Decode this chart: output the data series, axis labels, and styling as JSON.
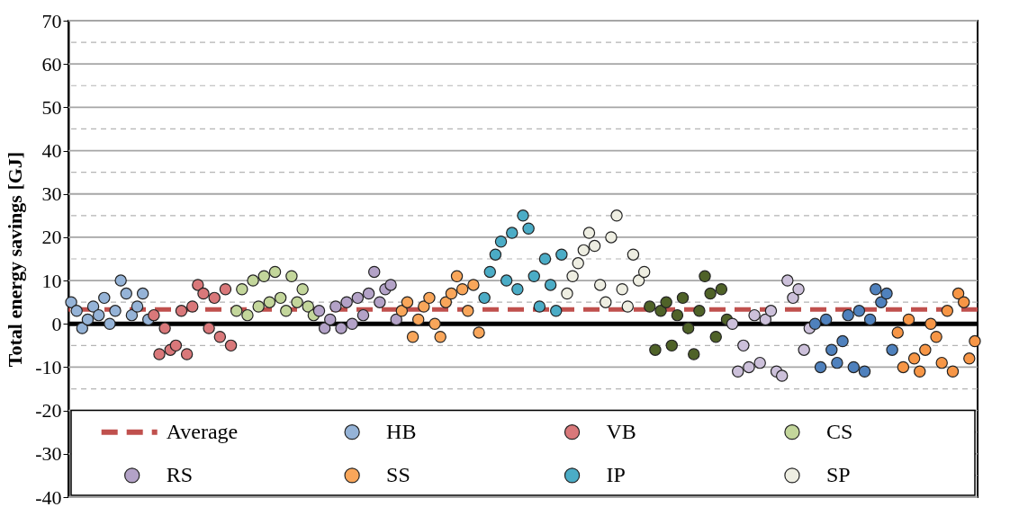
{
  "chart_data": {
    "type": "scatter",
    "ylabel": "Total energy savings [GJ]",
    "tick_labels": "y",
    "categories": [
      null,
      null,
      null,
      null,
      null,
      null,
      null,
      null,
      null,
      null,
      null,
      null,
      null,
      null,
      null,
      null,
      null,
      null,
      null,
      null,
      null,
      null,
      null,
      null,
      null,
      null,
      null,
      null,
      null,
      null,
      null,
      null,
      null,
      null,
      null,
      null,
      null,
      null,
      null,
      null,
      null,
      null,
      null,
      null,
      null,
      null,
      null,
      null,
      null,
      null,
      null,
      null,
      null,
      null,
      null,
      null,
      null,
      null,
      null,
      null,
      null,
      null,
      null,
      null,
      null,
      null,
      null,
      null,
      null,
      null,
      null,
      null,
      null,
      null,
      null,
      null,
      null,
      null,
      null,
      null,
      null,
      null,
      null,
      null,
      null,
      null,
      null,
      null,
      null,
      null,
      null,
      null,
      null,
      null,
      null,
      null,
      null,
      null,
      null,
      null,
      null,
      null,
      null,
      null,
      null,
      null,
      null,
      null,
      null,
      null,
      null,
      null,
      null,
      null,
      null,
      null,
      null,
      null,
      null,
      null,
      null,
      null,
      null,
      null,
      null,
      null,
      null,
      null,
      null,
      null,
      null,
      null,
      null,
      null,
      null,
      null,
      null,
      null,
      null,
      null,
      null,
      null,
      null,
      null,
      null,
      null,
      null,
      null,
      null,
      null,
      null,
      null,
      null,
      null,
      null,
      null,
      null,
      null,
      null,
      null,
      null,
      null,
      null,
      null,
      null
    ],
    "ylim": [
      -40,
      70
    ],
    "yticks": [
      -40,
      {
        "value": -35,
        "label": null
      },
      -30,
      {
        "value": -25,
        "label": null
      },
      -20,
      {
        "value": -15,
        "label": null
      },
      -10,
      {
        "value": -5,
        "label": null
      },
      0,
      {
        "value": 5,
        "label": null
      },
      10,
      {
        "value": 15,
        "label": null
      },
      20,
      {
        "value": 25,
        "label": null
      },
      30,
      {
        "value": 35,
        "label": null
      },
      40,
      {
        "value": 45,
        "label": null
      },
      50,
      {
        "value": 55,
        "label": null
      },
      60,
      {
        "value": 65,
        "label": null
      },
      70
    ],
    "grid": "y",
    "legend": "bottom",
    "marker": "circle",
    "ref_lines": [
      {
        "axis": "y",
        "value": 0,
        "color": "#000000",
        "line_style": "solid"
      },
      {
        "axis": "y",
        "value": 3.3,
        "label": "Average",
        "color": "#c0504d",
        "line_style": "dashed"
      }
    ],
    "series": [
      {
        "name": "HB",
        "color": "#95b3d7",
        "values": [
          5,
          3,
          -1,
          1,
          4,
          2,
          6,
          0,
          3,
          10,
          7,
          2,
          4,
          7,
          1,
          null,
          null,
          null,
          null,
          null,
          null,
          null,
          null,
          null,
          null,
          null,
          null,
          null,
          null,
          null,
          null,
          null,
          null,
          null,
          null,
          null,
          null,
          null,
          null,
          null,
          null,
          null,
          null,
          null,
          null,
          null,
          null,
          null,
          null,
          null,
          null,
          null,
          null,
          null,
          null,
          null,
          null,
          null,
          null,
          null,
          null,
          null,
          null,
          null,
          null,
          null,
          null,
          null,
          null,
          null,
          null,
          null,
          null,
          null,
          null,
          null,
          null,
          null,
          null,
          null,
          null,
          null,
          null,
          null,
          null,
          null,
          null,
          null,
          null,
          null,
          null,
          null,
          null,
          null,
          null,
          null,
          null,
          null,
          null,
          null,
          null,
          null,
          null,
          null,
          null,
          null,
          null,
          null,
          null,
          null,
          null,
          null,
          null,
          null,
          null,
          null,
          null,
          null,
          null,
          null,
          null,
          null,
          null,
          null,
          null,
          null,
          null,
          null,
          null,
          null,
          null,
          null,
          null,
          null,
          null,
          null,
          null,
          null,
          null,
          null,
          null,
          null,
          null,
          null,
          null,
          null,
          null,
          null,
          null,
          null,
          null,
          null,
          null,
          null,
          null,
          null,
          null,
          null,
          null,
          null,
          null,
          null,
          null,
          null,
          null
        ]
      },
      {
        "name": "VB",
        "color": "#d9787a",
        "values": [
          null,
          null,
          null,
          null,
          null,
          null,
          null,
          null,
          null,
          null,
          null,
          null,
          null,
          null,
          null,
          2,
          -7,
          -1,
          -6,
          -5,
          3,
          -7,
          4,
          9,
          7,
          -1,
          6,
          -3,
          8,
          -5,
          null,
          null,
          null,
          null,
          null,
          null,
          null,
          null,
          null,
          null,
          null,
          null,
          null,
          null,
          null,
          null,
          null,
          null,
          null,
          null,
          null,
          null,
          null,
          null,
          null,
          null,
          null,
          null,
          null,
          null,
          null,
          null,
          null,
          null,
          null,
          null,
          null,
          null,
          null,
          null,
          null,
          null,
          null,
          null,
          null,
          null,
          null,
          null,
          null,
          null,
          null,
          null,
          null,
          null,
          null,
          null,
          null,
          null,
          null,
          null,
          null,
          null,
          null,
          null,
          null,
          null,
          null,
          null,
          null,
          null,
          null,
          null,
          null,
          null,
          null,
          null,
          null,
          null,
          null,
          null,
          null,
          null,
          null,
          null,
          null,
          null,
          null,
          null,
          null,
          null,
          null,
          null,
          null,
          null,
          null,
          null,
          null,
          null,
          null,
          null,
          null,
          null,
          null,
          null,
          null,
          null,
          null,
          null,
          null,
          null,
          null,
          null,
          null,
          null,
          null,
          null,
          null,
          null,
          null,
          null,
          null,
          null,
          null,
          null,
          null,
          null,
          null,
          null,
          null,
          null,
          null,
          null,
          null,
          null,
          null
        ]
      },
      {
        "name": "CS",
        "color": "#c3d69b",
        "values": [
          null,
          null,
          null,
          null,
          null,
          null,
          null,
          null,
          null,
          null,
          null,
          null,
          null,
          null,
          null,
          null,
          null,
          null,
          null,
          null,
          null,
          null,
          null,
          null,
          null,
          null,
          null,
          null,
          null,
          null,
          3,
          8,
          2,
          10,
          4,
          11,
          5,
          12,
          6,
          3,
          11,
          5,
          8,
          4,
          2,
          null,
          null,
          null,
          null,
          null,
          null,
          null,
          null,
          null,
          null,
          null,
          null,
          null,
          null,
          null,
          null,
          null,
          null,
          null,
          null,
          null,
          null,
          null,
          null,
          null,
          null,
          null,
          null,
          null,
          null,
          null,
          null,
          null,
          null,
          null,
          null,
          null,
          null,
          null,
          null,
          null,
          null,
          null,
          null,
          null,
          null,
          null,
          null,
          null,
          null,
          null,
          null,
          null,
          null,
          null,
          null,
          null,
          null,
          null,
          null,
          null,
          null,
          null,
          null,
          null,
          null,
          null,
          null,
          null,
          null,
          null,
          null,
          null,
          null,
          null,
          null,
          null,
          null,
          null,
          null,
          null,
          null,
          null,
          null,
          null,
          null,
          null,
          null,
          null,
          null,
          null,
          null,
          null,
          null,
          null,
          null,
          null,
          null,
          null,
          null,
          null,
          null,
          null,
          null,
          null,
          null,
          null,
          null,
          null,
          null,
          null,
          null,
          null,
          null,
          null,
          null,
          null,
          null,
          null,
          null
        ]
      },
      {
        "name": "RS",
        "color": "#b3a2c7",
        "values": [
          null,
          null,
          null,
          null,
          null,
          null,
          null,
          null,
          null,
          null,
          null,
          null,
          null,
          null,
          null,
          null,
          null,
          null,
          null,
          null,
          null,
          null,
          null,
          null,
          null,
          null,
          null,
          null,
          null,
          null,
          null,
          null,
          null,
          null,
          null,
          null,
          null,
          null,
          null,
          null,
          null,
          null,
          null,
          null,
          null,
          3,
          -1,
          1,
          4,
          -1,
          5,
          0,
          6,
          2,
          7,
          12,
          5,
          8,
          9,
          1,
          null,
          null,
          null,
          null,
          null,
          null,
          null,
          null,
          null,
          null,
          null,
          null,
          null,
          null,
          null,
          null,
          null,
          null,
          null,
          null,
          null,
          null,
          null,
          null,
          null,
          null,
          null,
          null,
          null,
          null,
          null,
          null,
          null,
          null,
          null,
          null,
          null,
          null,
          null,
          null,
          null,
          null,
          null,
          null,
          null,
          null,
          null,
          null,
          null,
          null,
          null,
          null,
          null,
          null,
          null,
          null,
          null,
          null,
          null,
          null,
          null,
          null,
          null,
          null,
          null,
          null,
          null,
          null,
          null,
          null,
          null,
          null,
          null,
          null,
          null,
          null,
          null,
          null,
          null,
          null,
          null,
          null,
          null,
          null,
          null,
          null,
          null,
          null,
          null,
          null,
          null,
          null,
          null,
          null,
          null,
          null,
          null,
          null,
          null,
          null,
          null,
          null,
          null,
          null,
          null
        ]
      },
      {
        "name": "SS",
        "color": "#f9a65a",
        "values": [
          null,
          null,
          null,
          null,
          null,
          null,
          null,
          null,
          null,
          null,
          null,
          null,
          null,
          null,
          null,
          null,
          null,
          null,
          null,
          null,
          null,
          null,
          null,
          null,
          null,
          null,
          null,
          null,
          null,
          null,
          null,
          null,
          null,
          null,
          null,
          null,
          null,
          null,
          null,
          null,
          null,
          null,
          null,
          null,
          null,
          null,
          null,
          null,
          null,
          null,
          null,
          null,
          null,
          null,
          null,
          null,
          null,
          null,
          null,
          null,
          3,
          5,
          -3,
          1,
          4,
          6,
          0,
          -3,
          5,
          7,
          11,
          8,
          3,
          9,
          -2,
          null,
          null,
          null,
          null,
          null,
          null,
          null,
          null,
          null,
          null,
          null,
          null,
          null,
          null,
          null,
          null,
          null,
          null,
          null,
          null,
          null,
          null,
          null,
          null,
          null,
          null,
          null,
          null,
          null,
          null,
          null,
          null,
          null,
          null,
          null,
          null,
          null,
          null,
          null,
          null,
          null,
          null,
          null,
          null,
          null,
          null,
          null,
          null,
          null,
          null,
          null,
          null,
          null,
          null,
          null,
          null,
          null,
          null,
          null,
          null,
          null,
          null,
          null,
          null,
          null,
          null,
          null,
          null,
          null,
          null,
          null,
          null,
          null,
          null,
          null,
          null,
          null,
          null,
          null,
          null,
          null,
          null,
          null,
          null,
          null,
          null,
          null,
          null,
          null,
          null
        ]
      },
      {
        "name": "IP",
        "color": "#4bacc6",
        "values": [
          null,
          null,
          null,
          null,
          null,
          null,
          null,
          null,
          null,
          null,
          null,
          null,
          null,
          null,
          null,
          null,
          null,
          null,
          null,
          null,
          null,
          null,
          null,
          null,
          null,
          null,
          null,
          null,
          null,
          null,
          null,
          null,
          null,
          null,
          null,
          null,
          null,
          null,
          null,
          null,
          null,
          null,
          null,
          null,
          null,
          null,
          null,
          null,
          null,
          null,
          null,
          null,
          null,
          null,
          null,
          null,
          null,
          null,
          null,
          null,
          null,
          null,
          null,
          null,
          null,
          null,
          null,
          null,
          null,
          null,
          null,
          null,
          null,
          null,
          null,
          6,
          12,
          16,
          19,
          10,
          21,
          8,
          25,
          22,
          11,
          4,
          15,
          9,
          3,
          16,
          null,
          null,
          null,
          null,
          null,
          null,
          null,
          null,
          null,
          null,
          null,
          null,
          null,
          null,
          null,
          null,
          null,
          null,
          null,
          null,
          null,
          null,
          null,
          null,
          null,
          null,
          null,
          null,
          null,
          null,
          null,
          null,
          null,
          null,
          null,
          null,
          null,
          null,
          null,
          null,
          null,
          null,
          null,
          null,
          null,
          null,
          null,
          null,
          null,
          null,
          null,
          null,
          null,
          null,
          null,
          null,
          null,
          null,
          null,
          null,
          null,
          null,
          null,
          null,
          null,
          null,
          null,
          null,
          null,
          null,
          null,
          null,
          null,
          null,
          null
        ]
      },
      {
        "name": "SP",
        "color": "#eeeee2",
        "values": [
          null,
          null,
          null,
          null,
          null,
          null,
          null,
          null,
          null,
          null,
          null,
          null,
          null,
          null,
          null,
          null,
          null,
          null,
          null,
          null,
          null,
          null,
          null,
          null,
          null,
          null,
          null,
          null,
          null,
          null,
          null,
          null,
          null,
          null,
          null,
          null,
          null,
          null,
          null,
          null,
          null,
          null,
          null,
          null,
          null,
          null,
          null,
          null,
          null,
          null,
          null,
          null,
          null,
          null,
          null,
          null,
          null,
          null,
          null,
          null,
          null,
          null,
          null,
          null,
          null,
          null,
          null,
          null,
          null,
          null,
          null,
          null,
          null,
          null,
          null,
          null,
          null,
          null,
          null,
          null,
          null,
          null,
          null,
          null,
          null,
          null,
          null,
          null,
          null,
          null,
          7,
          11,
          14,
          17,
          21,
          18,
          9,
          5,
          20,
          25,
          8,
          4,
          16,
          10,
          12,
          null,
          null,
          null,
          null,
          null,
          null,
          null,
          null,
          null,
          null,
          null,
          null,
          null,
          null,
          null,
          null,
          null,
          null,
          null,
          null,
          null,
          null,
          null,
          null,
          null,
          null,
          null,
          null,
          null,
          null,
          null,
          null,
          null,
          null,
          null,
          null,
          null,
          null,
          null,
          null,
          null,
          null,
          null,
          null,
          null,
          null,
          null,
          null,
          null,
          null,
          null,
          null,
          null,
          null,
          null,
          null,
          null,
          null,
          null,
          null
        ]
      },
      {
        "color": "#4f6228",
        "values": [
          null,
          null,
          null,
          null,
          null,
          null,
          null,
          null,
          null,
          null,
          null,
          null,
          null,
          null,
          null,
          null,
          null,
          null,
          null,
          null,
          null,
          null,
          null,
          null,
          null,
          null,
          null,
          null,
          null,
          null,
          null,
          null,
          null,
          null,
          null,
          null,
          null,
          null,
          null,
          null,
          null,
          null,
          null,
          null,
          null,
          null,
          null,
          null,
          null,
          null,
          null,
          null,
          null,
          null,
          null,
          null,
          null,
          null,
          null,
          null,
          null,
          null,
          null,
          null,
          null,
          null,
          null,
          null,
          null,
          null,
          null,
          null,
          null,
          null,
          null,
          null,
          null,
          null,
          null,
          null,
          null,
          null,
          null,
          null,
          null,
          null,
          null,
          null,
          null,
          null,
          null,
          null,
          null,
          null,
          null,
          null,
          null,
          null,
          null,
          null,
          null,
          null,
          null,
          null,
          null,
          4,
          -6,
          3,
          5,
          -5,
          2,
          6,
          -1,
          -7,
          3,
          11,
          7,
          -3,
          8,
          1,
          null,
          null,
          null,
          null,
          null,
          null,
          null,
          null,
          null,
          null,
          null,
          null,
          null,
          null,
          null,
          null,
          null,
          null,
          null,
          null,
          null,
          null,
          null,
          null,
          null,
          null,
          null,
          null,
          null,
          null,
          null,
          null,
          null,
          null,
          null,
          null,
          null,
          null,
          null,
          null,
          null,
          null,
          null,
          null,
          null
        ]
      },
      {
        "color": "#ccc0da",
        "values": [
          null,
          null,
          null,
          null,
          null,
          null,
          null,
          null,
          null,
          null,
          null,
          null,
          null,
          null,
          null,
          null,
          null,
          null,
          null,
          null,
          null,
          null,
          null,
          null,
          null,
          null,
          null,
          null,
          null,
          null,
          null,
          null,
          null,
          null,
          null,
          null,
          null,
          null,
          null,
          null,
          null,
          null,
          null,
          null,
          null,
          null,
          null,
          null,
          null,
          null,
          null,
          null,
          null,
          null,
          null,
          null,
          null,
          null,
          null,
          null,
          null,
          null,
          null,
          null,
          null,
          null,
          null,
          null,
          null,
          null,
          null,
          null,
          null,
          null,
          null,
          null,
          null,
          null,
          null,
          null,
          null,
          null,
          null,
          null,
          null,
          null,
          null,
          null,
          null,
          null,
          null,
          null,
          null,
          null,
          null,
          null,
          null,
          null,
          null,
          null,
          null,
          null,
          null,
          null,
          null,
          null,
          null,
          null,
          null,
          null,
          null,
          null,
          null,
          null,
          null,
          null,
          null,
          null,
          null,
          null,
          0,
          -11,
          -5,
          -10,
          2,
          -9,
          1,
          3,
          -11,
          -12,
          10,
          6,
          8,
          -6,
          -1,
          null,
          null,
          null,
          null,
          null,
          null,
          null,
          null,
          null,
          null,
          null,
          null,
          null,
          null,
          null,
          null,
          null,
          null,
          null,
          null,
          null,
          null,
          null,
          null,
          null,
          null,
          null,
          null,
          null,
          null
        ]
      },
      {
        "color": "#4f81bd",
        "values": [
          null,
          null,
          null,
          null,
          null,
          null,
          null,
          null,
          null,
          null,
          null,
          null,
          null,
          null,
          null,
          null,
          null,
          null,
          null,
          null,
          null,
          null,
          null,
          null,
          null,
          null,
          null,
          null,
          null,
          null,
          null,
          null,
          null,
          null,
          null,
          null,
          null,
          null,
          null,
          null,
          null,
          null,
          null,
          null,
          null,
          null,
          null,
          null,
          null,
          null,
          null,
          null,
          null,
          null,
          null,
          null,
          null,
          null,
          null,
          null,
          null,
          null,
          null,
          null,
          null,
          null,
          null,
          null,
          null,
          null,
          null,
          null,
          null,
          null,
          null,
          null,
          null,
          null,
          null,
          null,
          null,
          null,
          null,
          null,
          null,
          null,
          null,
          null,
          null,
          null,
          null,
          null,
          null,
          null,
          null,
          null,
          null,
          null,
          null,
          null,
          null,
          null,
          null,
          null,
          null,
          null,
          null,
          null,
          null,
          null,
          null,
          null,
          null,
          null,
          null,
          null,
          null,
          null,
          null,
          null,
          null,
          null,
          null,
          null,
          null,
          null,
          null,
          null,
          null,
          null,
          null,
          null,
          null,
          null,
          null,
          0,
          -10,
          1,
          -6,
          -9,
          -4,
          2,
          -10,
          3,
          -11,
          1,
          8,
          5,
          7,
          -6,
          null,
          null,
          null,
          null,
          null,
          null,
          null,
          null,
          null,
          null,
          null,
          null,
          null,
          null,
          null
        ]
      },
      {
        "color": "#f79646",
        "values": [
          null,
          null,
          null,
          null,
          null,
          null,
          null,
          null,
          null,
          null,
          null,
          null,
          null,
          null,
          null,
          null,
          null,
          null,
          null,
          null,
          null,
          null,
          null,
          null,
          null,
          null,
          null,
          null,
          null,
          null,
          null,
          null,
          null,
          null,
          null,
          null,
          null,
          null,
          null,
          null,
          null,
          null,
          null,
          null,
          null,
          null,
          null,
          null,
          null,
          null,
          null,
          null,
          null,
          null,
          null,
          null,
          null,
          null,
          null,
          null,
          null,
          null,
          null,
          null,
          null,
          null,
          null,
          null,
          null,
          null,
          null,
          null,
          null,
          null,
          null,
          null,
          null,
          null,
          null,
          null,
          null,
          null,
          null,
          null,
          null,
          null,
          null,
          null,
          null,
          null,
          null,
          null,
          null,
          null,
          null,
          null,
          null,
          null,
          null,
          null,
          null,
          null,
          null,
          null,
          null,
          null,
          null,
          null,
          null,
          null,
          null,
          null,
          null,
          null,
          null,
          null,
          null,
          null,
          null,
          null,
          null,
          null,
          null,
          null,
          null,
          null,
          null,
          null,
          null,
          null,
          null,
          null,
          null,
          null,
          null,
          null,
          null,
          null,
          null,
          null,
          null,
          null,
          null,
          null,
          null,
          null,
          null,
          null,
          null,
          null,
          -2,
          -10,
          1,
          -8,
          -11,
          -6,
          0,
          -3,
          -9,
          3,
          -11,
          7,
          5,
          -8,
          -4
        ]
      }
    ]
  }
}
